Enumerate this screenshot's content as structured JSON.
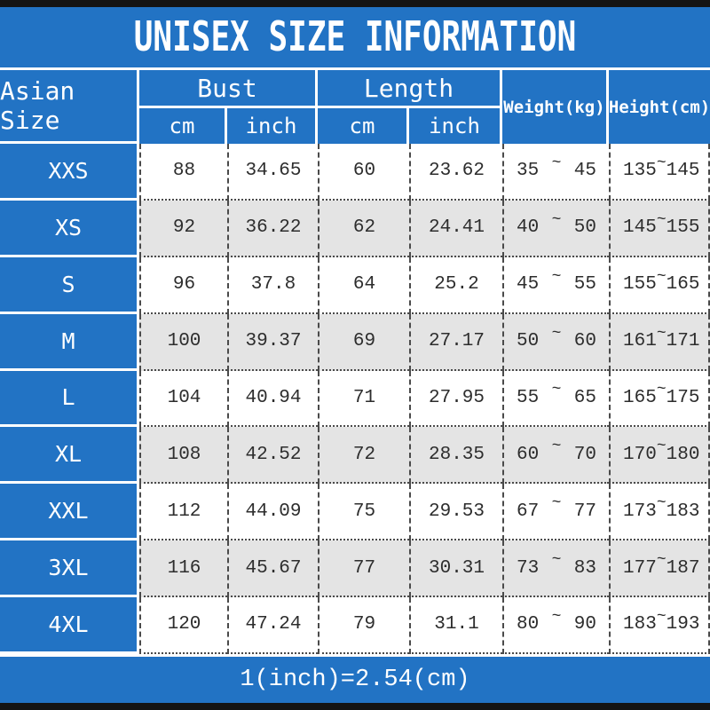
{
  "colors": {
    "accent_blue": "#2273c4",
    "alt_row_gray": "#e4e4e4",
    "frame_bar_black": "#141414",
    "data_text": "#2d2d2d",
    "header_text": "#ffffff"
  },
  "chart_data": {
    "type": "table",
    "title": "UNISEX SIZE INFORMATION",
    "footnote": "1(inch)=2.54(cm)",
    "tilde_char": "~",
    "header": {
      "size_label": "Asian Size",
      "groups": [
        {
          "label": "Bust",
          "sub": [
            "cm",
            "inch"
          ]
        },
        {
          "label": "Length",
          "sub": [
            "cm",
            "inch"
          ]
        }
      ],
      "weight_label": "Weight(kg)",
      "height_label": "Height(cm)"
    },
    "columns": [
      "Asian Size",
      "Bust cm",
      "Bust inch",
      "Length cm",
      "Length inch",
      "Weight(kg)",
      "Height(cm)"
    ],
    "rows": [
      {
        "size": "XXS",
        "bust_cm": "88",
        "bust_inch": "34.65",
        "length_cm": "60",
        "length_inch": "23.62",
        "weight_min": "35",
        "weight_max": "45",
        "height_min": "135",
        "height_max": "145"
      },
      {
        "size": "XS",
        "bust_cm": "92",
        "bust_inch": "36.22",
        "length_cm": "62",
        "length_inch": "24.41",
        "weight_min": "40",
        "weight_max": "50",
        "height_min": "145",
        "height_max": "155"
      },
      {
        "size": "S",
        "bust_cm": "96",
        "bust_inch": "37.8",
        "length_cm": "64",
        "length_inch": "25.2",
        "weight_min": "45",
        "weight_max": "55",
        "height_min": "155",
        "height_max": "165"
      },
      {
        "size": "M",
        "bust_cm": "100",
        "bust_inch": "39.37",
        "length_cm": "69",
        "length_inch": "27.17",
        "weight_min": "50",
        "weight_max": "60",
        "height_min": "161",
        "height_max": "171"
      },
      {
        "size": "L",
        "bust_cm": "104",
        "bust_inch": "40.94",
        "length_cm": "71",
        "length_inch": "27.95",
        "weight_min": "55",
        "weight_max": "65",
        "height_min": "165",
        "height_max": "175"
      },
      {
        "size": "XL",
        "bust_cm": "108",
        "bust_inch": "42.52",
        "length_cm": "72",
        "length_inch": "28.35",
        "weight_min": "60",
        "weight_max": "70",
        "height_min": "170",
        "height_max": "180"
      },
      {
        "size": "XXL",
        "bust_cm": "112",
        "bust_inch": "44.09",
        "length_cm": "75",
        "length_inch": "29.53",
        "weight_min": "67",
        "weight_max": "77",
        "height_min": "173",
        "height_max": "183"
      },
      {
        "size": "3XL",
        "bust_cm": "116",
        "bust_inch": "45.67",
        "length_cm": "77",
        "length_inch": "30.31",
        "weight_min": "73",
        "weight_max": "83",
        "height_min": "177",
        "height_max": "187"
      },
      {
        "size": "4XL",
        "bust_cm": "120",
        "bust_inch": "47.24",
        "length_cm": "79",
        "length_inch": "31.1",
        "weight_min": "80",
        "weight_max": "90",
        "height_min": "183",
        "height_max": "193"
      }
    ]
  }
}
